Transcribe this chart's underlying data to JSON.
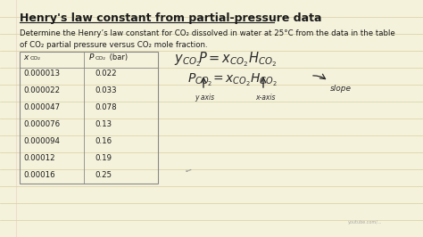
{
  "bg_color": "#f5f2dc",
  "line_color": "#d4cfa0",
  "text_color": "#1a1a1a",
  "title": "Henry's law constant from partial-pressure data",
  "desc1": "Determine the Henry’s law constant for CO₂ dissolved in water at 25°C from the data in the table",
  "desc2": "of CO₂ partial pressure versus CO₂ mole fraction.",
  "table_data": [
    [
      "0.000013",
      "0.022"
    ],
    [
      "0.000022",
      "0.033"
    ],
    [
      "0.000047",
      "0.078"
    ],
    [
      "0.000076",
      "0.13"
    ],
    [
      "0.000094",
      "0.16"
    ],
    [
      "0.00012",
      "0.19"
    ],
    [
      "0.00016",
      "0.25"
    ]
  ],
  "figsize": [
    4.74,
    2.66
  ],
  "dpi": 100
}
